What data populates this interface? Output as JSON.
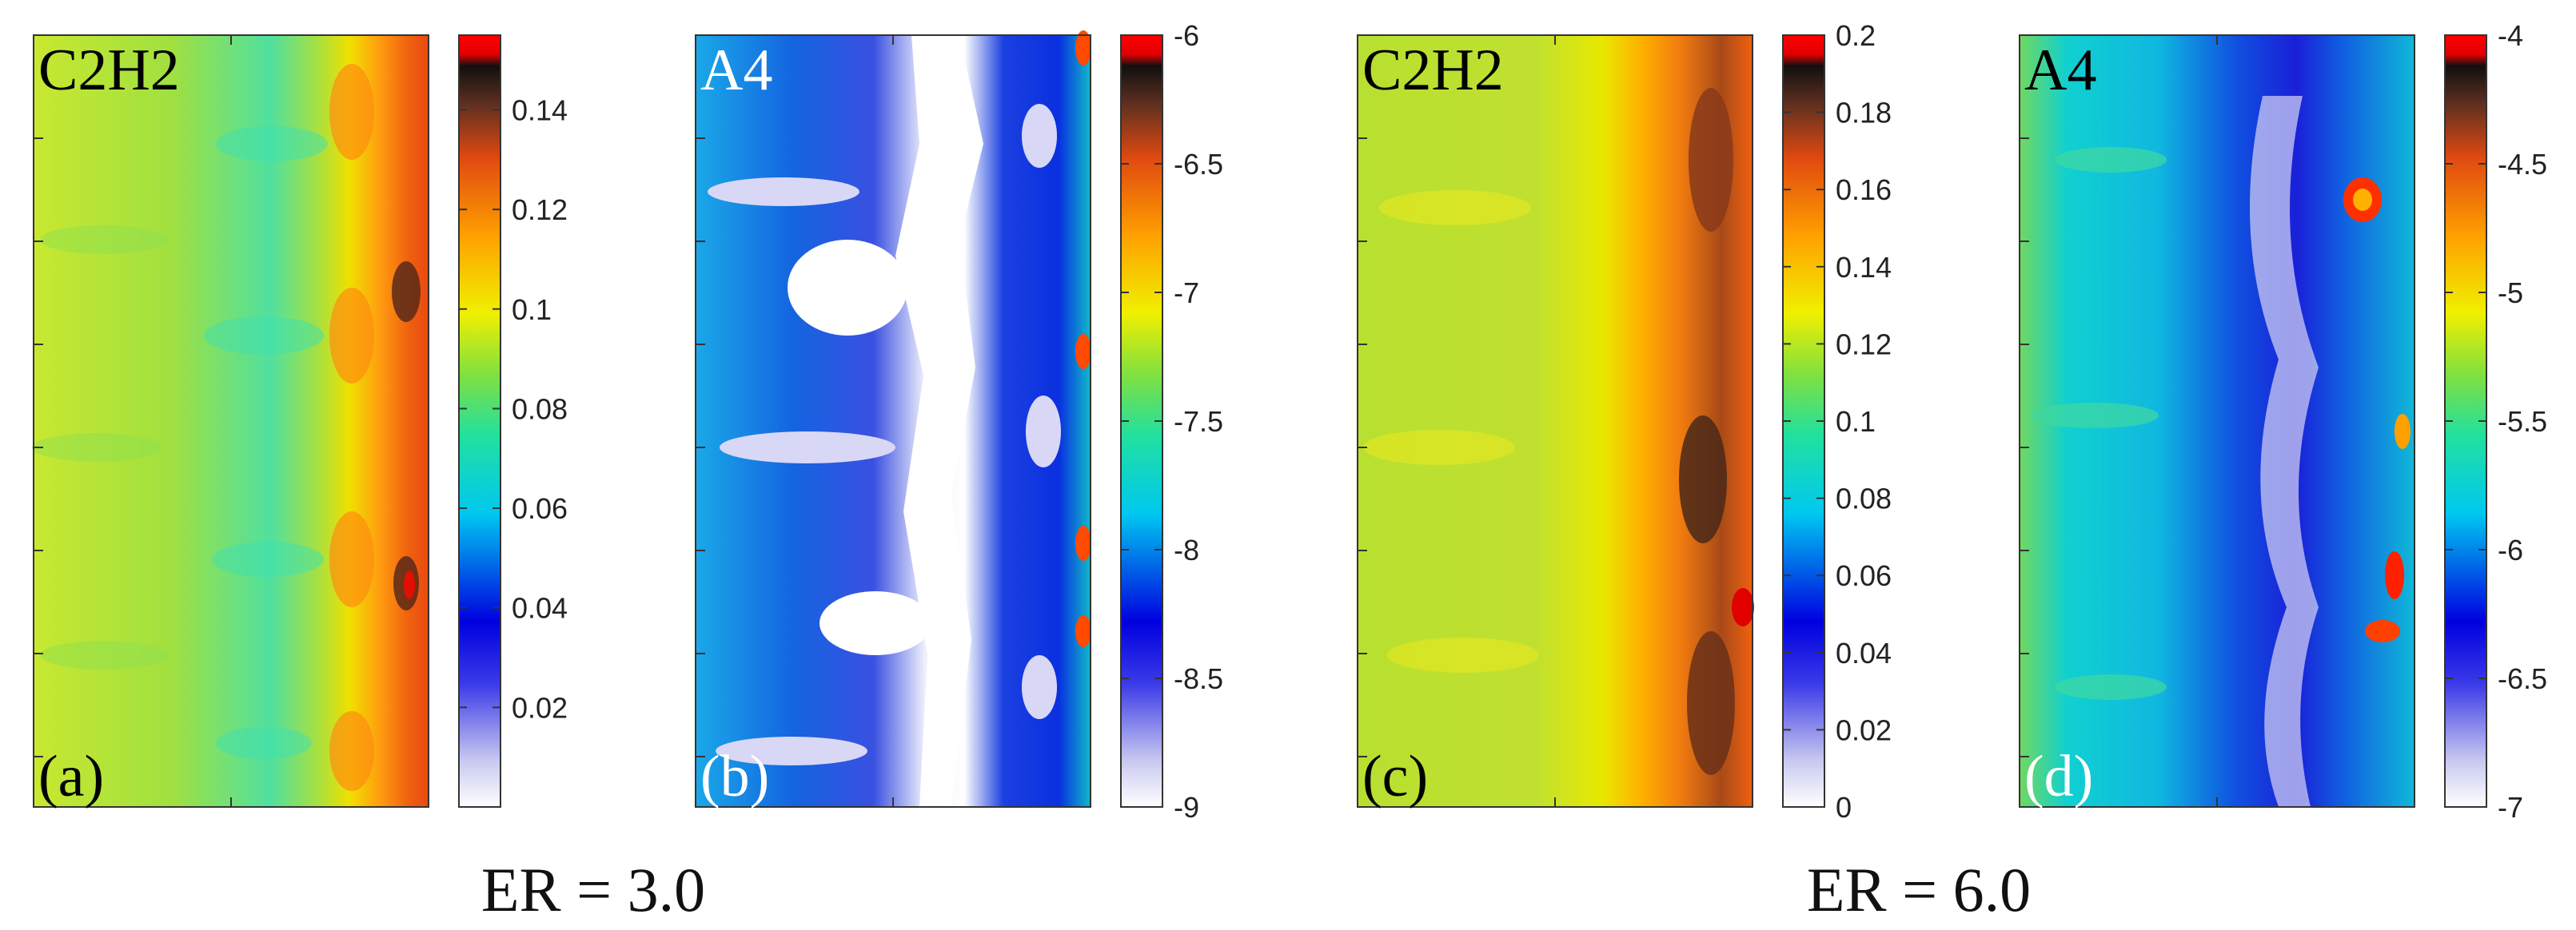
{
  "chart_data": [
    {
      "type": "heatmap",
      "panel_label": "(a)",
      "title": "C2H2",
      "colorbar": {
        "min": 0,
        "max": 0.155,
        "ticks": [
          0.02,
          0.04,
          0.06,
          0.08,
          0.1,
          0.12,
          0.14
        ],
        "tick_labels": [
          "0.02",
          "0.04",
          "0.06",
          "0.08",
          "0.1",
          "0.12",
          "0.14"
        ]
      },
      "colormap": "jet-white-black-red",
      "field_description": {
        "background_level": 0.095,
        "front_level": 0.13,
        "front_side": "right",
        "hotspots_max": 0.15
      },
      "group": "ER = 3.0"
    },
    {
      "type": "heatmap",
      "panel_label": "(b)",
      "title": "A4",
      "colorbar": {
        "min": -9,
        "max": -6,
        "ticks": [
          -9,
          -8.5,
          -8,
          -7.5,
          -7,
          -6.5,
          -6
        ],
        "tick_labels": [
          "-9",
          "-8.5",
          "-8",
          "-7.5",
          "-7",
          "-6.5",
          "-6"
        ]
      },
      "colormap": "jet-white-black-red",
      "field_description": {
        "background_level": -8.3,
        "core_level": -9,
        "core_side": "center",
        "edge_hotspots": -6.2
      },
      "group": "ER = 3.0"
    },
    {
      "type": "heatmap",
      "panel_label": "(c)",
      "title": "C2H2",
      "colorbar": {
        "min": 0,
        "max": 0.2,
        "ticks": [
          0,
          0.02,
          0.04,
          0.06,
          0.08,
          0.1,
          0.12,
          0.14,
          0.16,
          0.18,
          0.2
        ],
        "tick_labels": [
          "0",
          "0.02",
          "0.04",
          "0.06",
          "0.08",
          "0.1",
          "0.12",
          "0.14",
          "0.16",
          "0.18",
          "0.2"
        ]
      },
      "colormap": "jet-white-black-red",
      "field_description": {
        "background_level": 0.13,
        "front_level": 0.17,
        "front_side": "right",
        "hotspots_max": 0.19
      },
      "group": "ER = 6.0"
    },
    {
      "type": "heatmap",
      "panel_label": "(d)",
      "title": "A4",
      "colorbar": {
        "min": -7,
        "max": -4,
        "ticks": [
          -7,
          -6.5,
          -6,
          -5.5,
          -5,
          -4.5,
          -4
        ],
        "tick_labels": [
          "-7",
          "-6.5",
          "-6",
          "-5.5",
          "-5",
          "-4.5",
          "-4"
        ]
      },
      "colormap": "jet-white-black-red",
      "field_description": {
        "background_level": -5.8,
        "band_level": -6.6,
        "band_side": "center-right",
        "hotspots_max": -4.4
      },
      "group": "ER = 6.0"
    }
  ],
  "group_labels": [
    "ER = 3.0",
    "ER = 6.0"
  ]
}
